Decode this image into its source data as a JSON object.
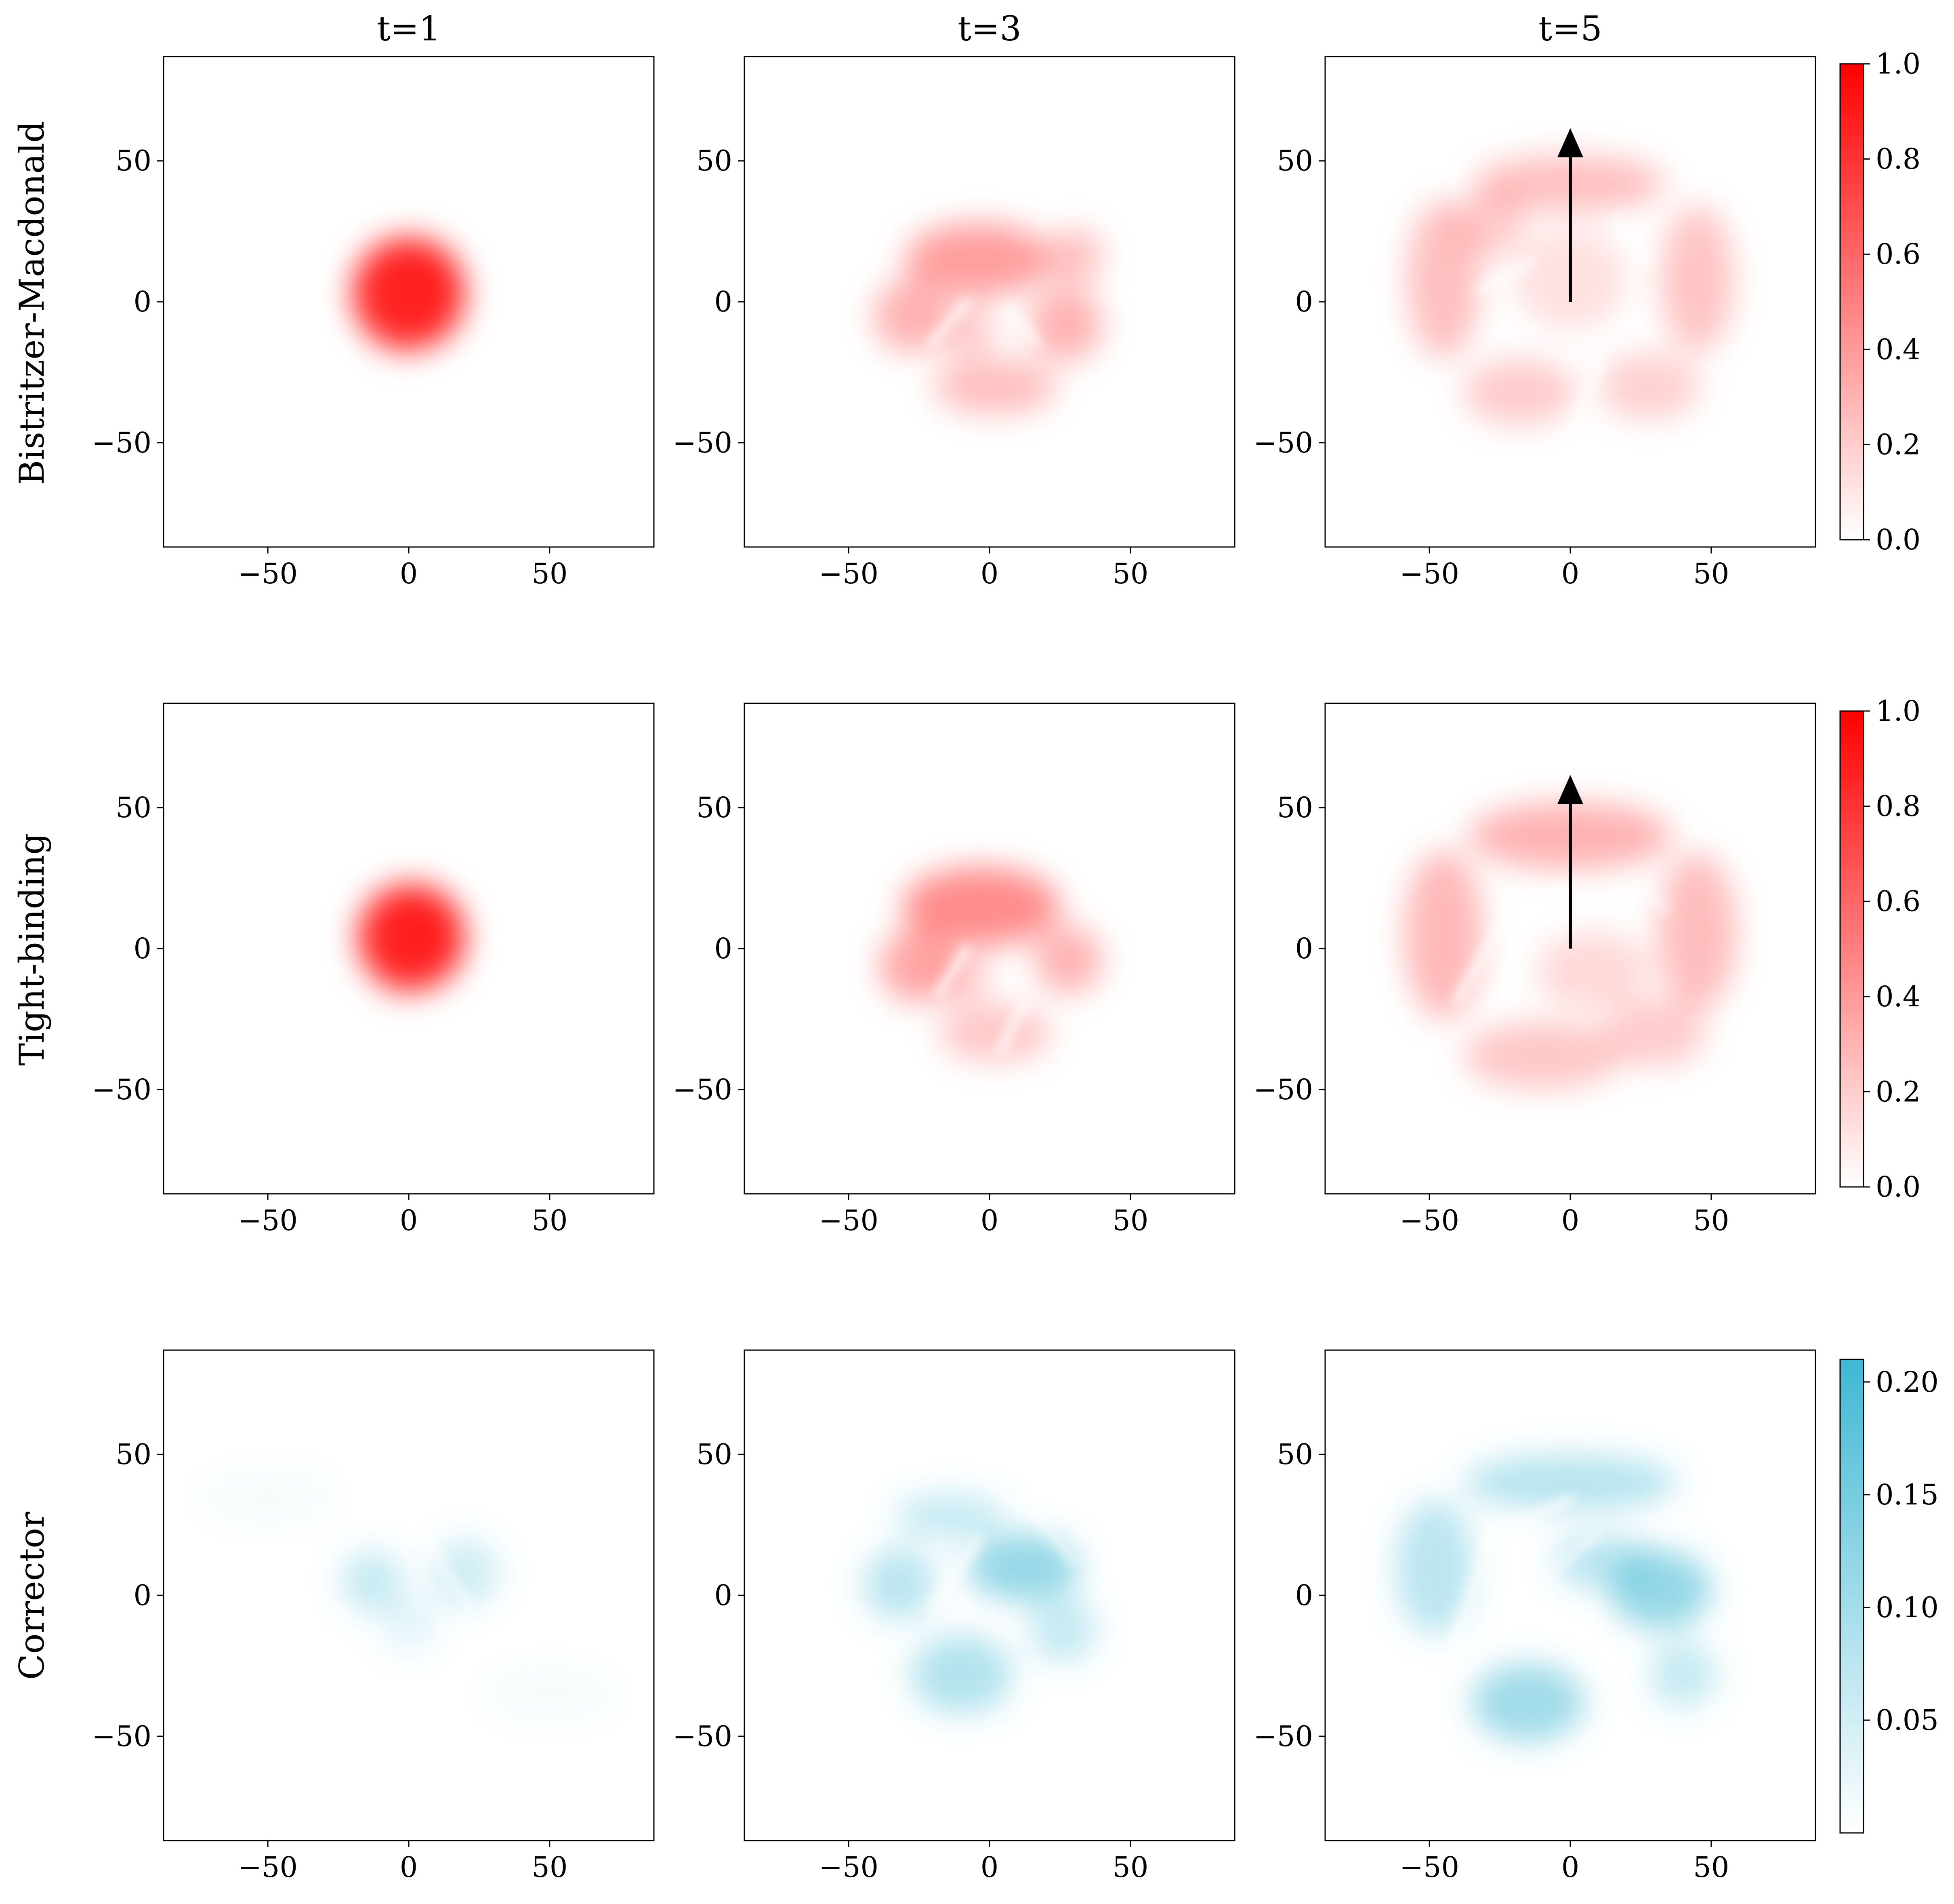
{
  "chart_data": {
    "type": "heatmap",
    "columns": [
      {
        "title": "t=1"
      },
      {
        "title": "t=3"
      },
      {
        "title": "t=5"
      }
    ],
    "rows": [
      {
        "label": "Bistritzer-Macdonald",
        "cmap": "red",
        "colorbar": {
          "min": 0.0,
          "max": 1.0,
          "ticks": [
            "0.0",
            "0.2",
            "0.4",
            "0.6",
            "0.8",
            "1.0"
          ],
          "tick_values": [
            0.0,
            0.2,
            0.4,
            0.6,
            0.8,
            1.0
          ]
        }
      },
      {
        "label": "Tight-binding",
        "cmap": "red",
        "colorbar": {
          "min": 0.0,
          "max": 1.0,
          "ticks": [
            "0.0",
            "0.2",
            "0.4",
            "0.6",
            "0.8",
            "1.0"
          ],
          "tick_values": [
            0.0,
            0.2,
            0.4,
            0.6,
            0.8,
            1.0
          ]
        }
      },
      {
        "label": "Corrector",
        "cmap": "blue",
        "colorbar": {
          "min": 0.0,
          "max": 0.21,
          "ticks": [
            "0.05",
            "0.10",
            "0.15",
            "0.20"
          ],
          "tick_values": [
            0.05,
            0.1,
            0.15,
            0.2
          ]
        }
      }
    ],
    "xlim": [
      -87,
      87
    ],
    "ylim": [
      -87,
      87
    ],
    "xticks": [
      -50,
      0,
      50
    ],
    "yticks": [
      -50,
      0,
      50
    ],
    "xtick_labels": [
      "−50",
      "0",
      "50"
    ],
    "ytick_labels": [
      "−50",
      "0",
      "50"
    ],
    "colors": {
      "red": "#ff0000",
      "blue": "#3fb8d4",
      "axis": "#000000"
    },
    "arrows": [
      {
        "row": 0,
        "col": 2,
        "from": [
          0,
          0
        ],
        "to": [
          0,
          57
        ]
      },
      {
        "row": 1,
        "col": 2,
        "from": [
          0,
          0
        ],
        "to": [
          0,
          57
        ]
      }
    ],
    "panels": [
      {
        "row": 0,
        "col": 0,
        "blobs": [
          {
            "x": 0,
            "y": 3,
            "r": 20,
            "i": 0.85
          },
          {
            "x": 4,
            "y": 6,
            "r": 9,
            "i": 0.25
          },
          {
            "x": -5,
            "y": -14,
            "r": 7,
            "i": 0.08
          }
        ],
        "holes": []
      },
      {
        "row": 0,
        "col": 1,
        "blobs": [
          {
            "x": -4,
            "y": 15,
            "rx": 26,
            "ry": 13,
            "i": 0.38
          },
          {
            "x": -28,
            "y": -5,
            "r": 13,
            "i": 0.3
          },
          {
            "x": 27,
            "y": -8,
            "r": 13,
            "i": 0.3
          },
          {
            "x": 2,
            "y": -30,
            "rx": 22,
            "ry": 10,
            "i": 0.25
          },
          {
            "x": -8,
            "y": -10,
            "r": 10,
            "i": 0.2
          },
          {
            "x": 30,
            "y": 16,
            "r": 10,
            "i": 0.25
          }
        ],
        "holes": [
          {
            "x1": -20,
            "y1": -14,
            "x2": -8,
            "y2": 0,
            "w": 3
          },
          {
            "x1": 6,
            "y1": -2,
            "x2": 16,
            "y2": -14,
            "w": 3
          }
        ]
      },
      {
        "row": 0,
        "col": 2,
        "blobs": [
          {
            "x": 0,
            "y": 42,
            "rx": 34,
            "ry": 10,
            "i": 0.25
          },
          {
            "x": -45,
            "y": 8,
            "rx": 13,
            "ry": 28,
            "i": 0.25
          },
          {
            "x": 45,
            "y": 8,
            "rx": 13,
            "ry": 26,
            "i": 0.23
          },
          {
            "x": -18,
            "y": -32,
            "rx": 20,
            "ry": 12,
            "i": 0.2
          },
          {
            "x": 28,
            "y": -30,
            "rx": 18,
            "ry": 12,
            "i": 0.18
          },
          {
            "x": 0,
            "y": 8,
            "rx": 20,
            "ry": 18,
            "i": 0.12
          },
          {
            "x": -28,
            "y": 28,
            "r": 12,
            "i": 0.2
          }
        ],
        "holes": [
          {
            "x1": -32,
            "y1": 4,
            "x2": -14,
            "y2": 14,
            "w": 3
          },
          {
            "x1": 10,
            "y1": -22,
            "x2": 0,
            "y2": -48,
            "w": 3
          },
          {
            "x1": 16,
            "y1": 30,
            "x2": 28,
            "y2": 14,
            "w": 2
          }
        ]
      },
      {
        "row": 1,
        "col": 0,
        "blobs": [
          {
            "x": 1,
            "y": 4,
            "r": 19,
            "i": 0.85
          },
          {
            "x": 4,
            "y": 6,
            "r": 9,
            "i": 0.3
          },
          {
            "x": -4,
            "y": -12,
            "r": 7,
            "i": 0.1
          }
        ],
        "holes": []
      },
      {
        "row": 1,
        "col": 1,
        "blobs": [
          {
            "x": -3,
            "y": 15,
            "rx": 28,
            "ry": 14,
            "i": 0.45
          },
          {
            "x": -26,
            "y": -6,
            "r": 13,
            "i": 0.35
          },
          {
            "x": 28,
            "y": -4,
            "r": 12,
            "i": 0.3
          },
          {
            "x": 2,
            "y": -30,
            "rx": 20,
            "ry": 10,
            "i": 0.22
          },
          {
            "x": -10,
            "y": -10,
            "r": 10,
            "i": 0.2
          }
        ],
        "holes": [
          {
            "x1": -18,
            "y1": -16,
            "x2": -8,
            "y2": 0,
            "w": 3
          },
          {
            "x1": 12,
            "y1": -20,
            "x2": 4,
            "y2": -36,
            "w": 3
          }
        ]
      },
      {
        "row": 1,
        "col": 2,
        "blobs": [
          {
            "x": 0,
            "y": 40,
            "rx": 36,
            "ry": 12,
            "i": 0.3
          },
          {
            "x": -45,
            "y": 5,
            "rx": 14,
            "ry": 30,
            "i": 0.28
          },
          {
            "x": 45,
            "y": 6,
            "rx": 14,
            "ry": 28,
            "i": 0.26
          },
          {
            "x": -10,
            "y": -38,
            "rx": 28,
            "ry": 12,
            "i": 0.22
          },
          {
            "x": 30,
            "y": -30,
            "rx": 18,
            "ry": 12,
            "i": 0.2
          },
          {
            "x": 8,
            "y": -8,
            "rx": 20,
            "ry": 14,
            "i": 0.15
          }
        ],
        "holes": [
          {
            "x1": -40,
            "y1": -18,
            "x2": -20,
            "y2": 16,
            "w": 3
          },
          {
            "x1": -18,
            "y1": 16,
            "x2": 0,
            "y2": 22,
            "w": 3
          },
          {
            "x1": 26,
            "y1": 22,
            "x2": 34,
            "y2": 14,
            "w": 2
          }
        ]
      },
      {
        "row": 2,
        "col": 0,
        "blobs": [
          {
            "x": -13,
            "y": 5,
            "r": 11,
            "i": 0.3
          },
          {
            "x": 20,
            "y": 8,
            "r": 12,
            "i": 0.25
          },
          {
            "x": 0,
            "y": -10,
            "r": 10,
            "i": 0.15
          },
          {
            "x": -50,
            "y": 35,
            "rx": 22,
            "ry": 8,
            "i": 0.06
          },
          {
            "x": 50,
            "y": -35,
            "rx": 22,
            "ry": 8,
            "i": 0.06
          }
        ],
        "holes": [
          {
            "x1": 5,
            "y1": 22,
            "x2": 22,
            "y2": -5,
            "w": 2
          }
        ]
      },
      {
        "row": 2,
        "col": 1,
        "blobs": [
          {
            "x": 12,
            "y": 10,
            "rx": 20,
            "ry": 12,
            "i": 0.55
          },
          {
            "x": -10,
            "y": -28,
            "rx": 18,
            "ry": 14,
            "i": 0.4
          },
          {
            "x": -32,
            "y": 4,
            "r": 13,
            "i": 0.35
          },
          {
            "x": 26,
            "y": -12,
            "r": 12,
            "i": 0.3
          },
          {
            "x": -14,
            "y": 28,
            "rx": 20,
            "ry": 8,
            "i": 0.3
          }
        ],
        "holes": [
          {
            "x1": -20,
            "y1": -4,
            "x2": -4,
            "y2": 20,
            "w": 3
          },
          {
            "x1": 14,
            "y1": 32,
            "x2": 30,
            "y2": 12,
            "w": 2
          }
        ]
      },
      {
        "row": 2,
        "col": 2,
        "blobs": [
          {
            "x": 32,
            "y": 2,
            "rx": 18,
            "ry": 14,
            "i": 0.55
          },
          {
            "x": -15,
            "y": -38,
            "rx": 20,
            "ry": 14,
            "i": 0.5
          },
          {
            "x": 0,
            "y": 40,
            "rx": 38,
            "ry": 10,
            "i": 0.38
          },
          {
            "x": -48,
            "y": 10,
            "rx": 14,
            "ry": 24,
            "i": 0.35
          },
          {
            "x": 12,
            "y": 12,
            "rx": 18,
            "ry": 10,
            "i": 0.35
          },
          {
            "x": 40,
            "y": -28,
            "r": 12,
            "i": 0.3
          }
        ],
        "holes": [
          {
            "x1": -42,
            "y1": -20,
            "x2": -28,
            "y2": 22,
            "w": 3
          },
          {
            "x1": -26,
            "y1": 22,
            "x2": 0,
            "y2": 34,
            "w": 3
          },
          {
            "x1": -10,
            "y1": 6,
            "x2": 10,
            "y2": 22,
            "w": 2
          }
        ]
      }
    ]
  }
}
